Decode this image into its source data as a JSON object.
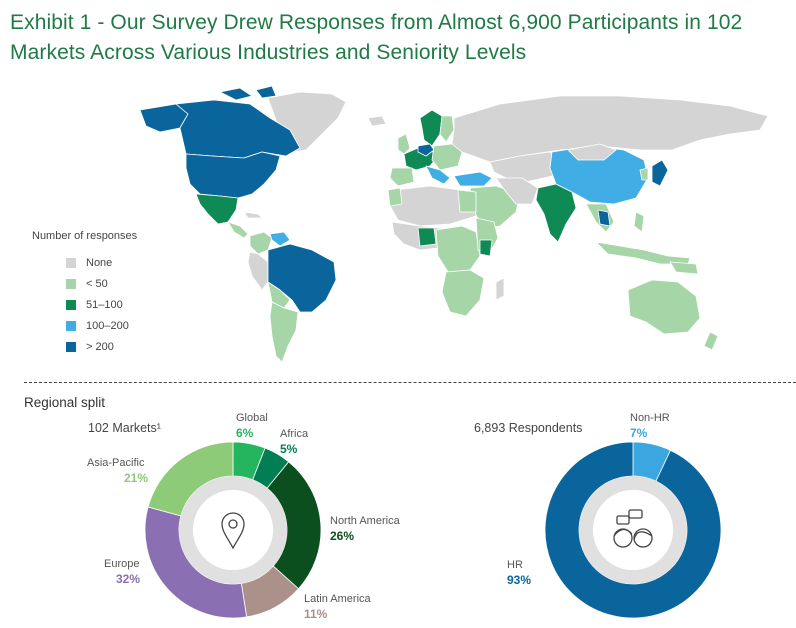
{
  "title": "Exhibit 1 - Our Survey Drew Responses from Almost 6,900 Participants in 102 Markets Across Various Industries and Seniority Levels",
  "map_legend": {
    "title": "Number of responses",
    "items": [
      {
        "label": "None",
        "color": "#d4d4d4"
      },
      {
        "label": "< 50",
        "color": "#a6d5a8"
      },
      {
        "label": "51–100",
        "color": "#0f8a55"
      },
      {
        "label": "100–200",
        "color": "#40aee5"
      },
      {
        "label": "> 200",
        "color": "#0a659d"
      }
    ]
  },
  "regional_split_label": "Regional split",
  "chart_data": [
    {
      "type": "pie",
      "variant": "donut",
      "subtitle": "102 Markets¹",
      "center_icon": "location-pin-icon",
      "slices": [
        {
          "label": "Global",
          "value": 6,
          "display": "6%",
          "color": "#26b55f"
        },
        {
          "label": "Africa",
          "value": 5,
          "display": "5%",
          "color": "#017e54"
        },
        {
          "label": "North America",
          "value": 26,
          "display": "26%",
          "color": "#0c4f1e"
        },
        {
          "label": "Latin America",
          "value": 11,
          "display": "11%",
          "color": "#aa9189"
        },
        {
          "label": "Europe",
          "value": 32,
          "display": "32%",
          "color": "#8a70b3"
        },
        {
          "label": "Asia-Pacific",
          "value": 21,
          "display": "21%",
          "color": "#8ecb79"
        }
      ]
    },
    {
      "type": "pie",
      "variant": "donut",
      "subtitle": "6,893 Respondents",
      "center_icon": "two-people-chat-icon",
      "slices": [
        {
          "label": "Non-HR",
          "value": 7,
          "display": "7%",
          "color": "#3ba7e0"
        },
        {
          "label": "HR",
          "value": 93,
          "display": "93%",
          "color": "#0a659d"
        }
      ]
    }
  ]
}
